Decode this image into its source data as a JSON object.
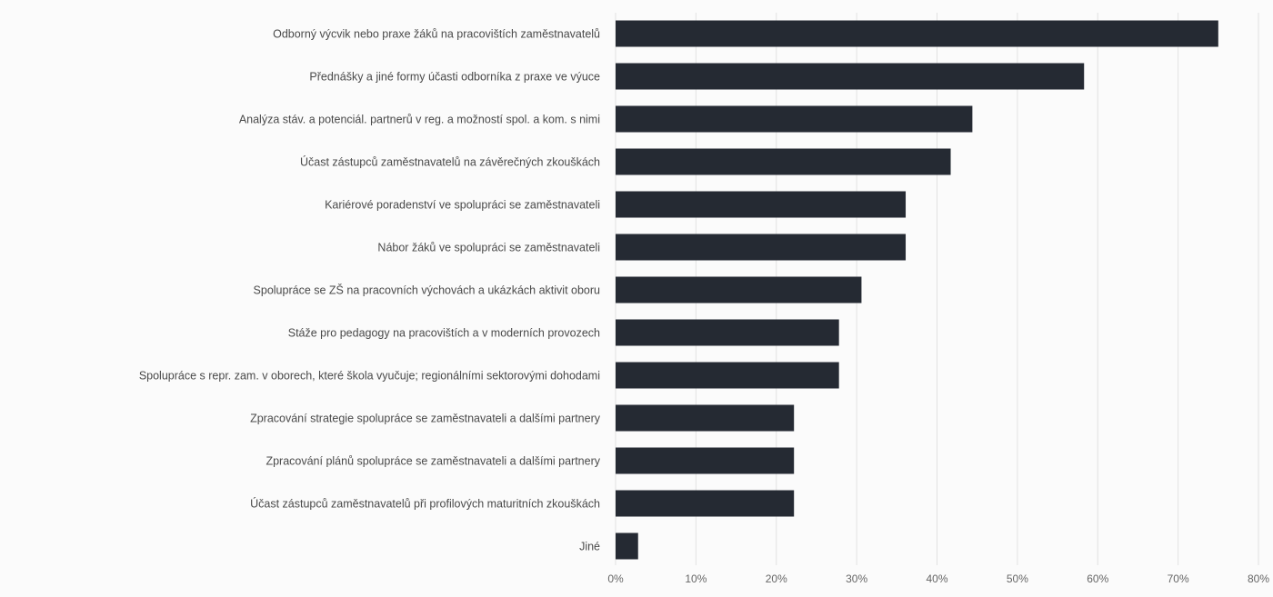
{
  "chart_data": {
    "type": "bar",
    "orientation": "horizontal",
    "title": "",
    "xlabel": "",
    "ylabel": "",
    "xlim": [
      0,
      0.8
    ],
    "x_ticks": [
      "0%",
      "10%",
      "20%",
      "30%",
      "40%",
      "50%",
      "60%",
      "70%",
      "80%"
    ],
    "grid": "vertical",
    "legend": "none",
    "bar_color": "#252a33",
    "categories": [
      "Odborný výcvik nebo praxe žáků na pracovištích zaměstnavatelů",
      "Přednášky a jiné formy účasti odborníka z praxe ve výuce",
      "Analýza stáv. a potenciál. partnerů v reg. a možností spol. a kom. s nimi",
      "Účast zástupců zaměstnavatelů na závěrečných zkouškách",
      "Kariérové poradenství ve spolupráci se zaměstnavateli",
      "Nábor žáků ve spolupráci se zaměstnavateli",
      "Spolupráce se ZŠ na pracovních výchovách a ukázkách aktivit oboru",
      "Stáže pro pedagogy na pracovištích a v moderních provozech",
      "Spolupráce s repr. zam. v oborech, které škola vyučuje; regionálními sektorovými dohodami",
      "Zpracování strategie spolupráce se zaměstnavateli a dalšími partnery",
      "Zpracování plánů spolupráce se zaměstnavateli a dalšími partnery",
      "Účast zástupců zaměstnavatelů při profilových maturitních zkouškách",
      "Jiné"
    ],
    "values": [
      0.75,
      0.583,
      0.444,
      0.417,
      0.361,
      0.361,
      0.306,
      0.278,
      0.278,
      0.222,
      0.222,
      0.222,
      0.028
    ]
  }
}
